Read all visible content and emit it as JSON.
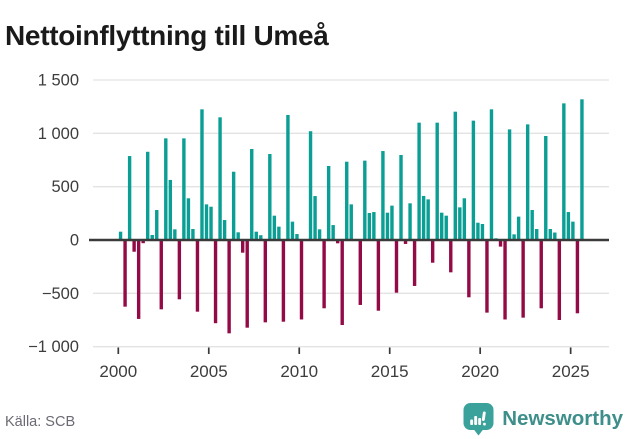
{
  "title": "Nettoinflyttning till Umeå",
  "source": {
    "label": "Källa: SCB"
  },
  "brand": {
    "name": "Newsworthy",
    "icon": "newsworthy-speech-bubble-bar-chart-icon",
    "icon_color": "#3aa29a",
    "text_color": "#3e8e8a"
  },
  "colors": {
    "positive_bar": "#0a9e94",
    "negative_bar": "#930b46",
    "gridline": "#e3e3e3",
    "zero_line": "#3a3a3a",
    "axis_text": "#3d3d3d",
    "title_text": "#1a1a1a",
    "source_text": "#6b6b73"
  },
  "chart_data": {
    "type": "bar",
    "title": "Nettoinflyttning till Umeå",
    "frequency": "quarterly",
    "start": "2000Q1",
    "end": "2025Q3",
    "xlabel": "",
    "ylabel": "",
    "ylim": [
      -1000,
      1500
    ],
    "grid": "horizontal",
    "legend": "none",
    "x_tick_years": [
      2000,
      2005,
      2010,
      2015,
      2020,
      2025
    ],
    "x_tick_labels": [
      "2000",
      "2005",
      "2010",
      "2015",
      "2020",
      "2025"
    ],
    "y_tick_values": [
      1500,
      1000,
      500,
      0,
      -500,
      -1000
    ],
    "y_tick_labels": [
      "1 500",
      "1 000",
      "500",
      "0",
      "−500",
      "−1 000"
    ],
    "values": [
      78,
      -625,
      787,
      -110,
      -740,
      -30,
      827,
      47,
      281,
      -650,
      953,
      563,
      100,
      -556,
      953,
      391,
      103,
      -672,
      1225,
      334,
      312,
      -780,
      1150,
      187,
      -875,
      640,
      72,
      -119,
      -822,
      853,
      78,
      45,
      -772,
      806,
      228,
      125,
      -766,
      1172,
      172,
      56,
      -745,
      0,
      1020,
      412,
      100,
      -640,
      694,
      140,
      -31,
      -797,
      734,
      334,
      0,
      -609,
      744,
      253,
      262,
      -663,
      834,
      256,
      322,
      -494,
      797,
      -37,
      344,
      -431,
      1100,
      413,
      381,
      -213,
      1100,
      256,
      228,
      -303,
      1203,
      306,
      391,
      -537,
      1119,
      162,
      150,
      -681,
      1225,
      16,
      -62,
      -745,
      1037,
      53,
      219,
      -728,
      1084,
      281,
      103,
      -640,
      975,
      103,
      70,
      -750,
      1281,
      262,
      172,
      -687,
      1319
    ]
  }
}
